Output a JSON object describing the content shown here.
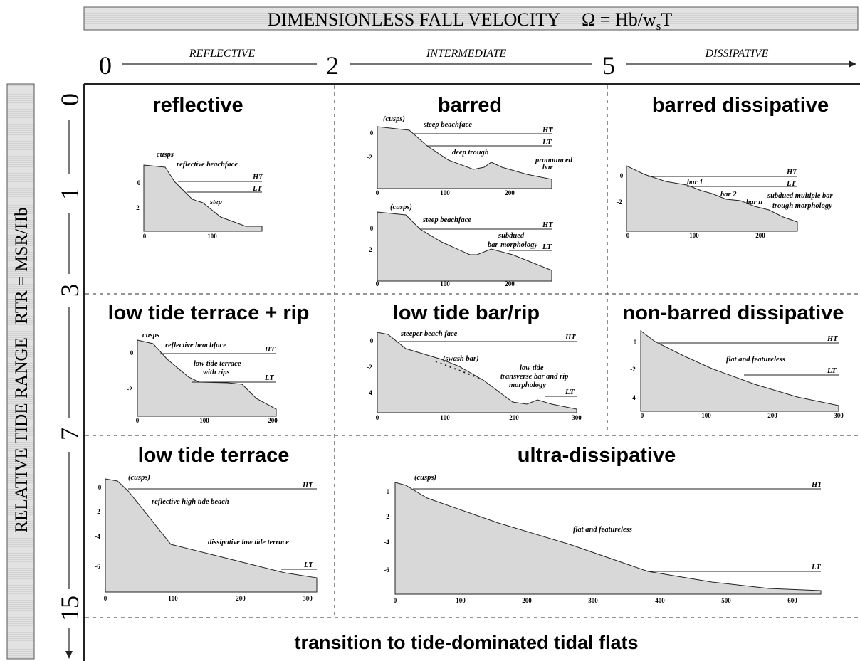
{
  "header": {
    "title": "DIMENSIONLESS FALL VELOCITY",
    "formula_main": "Ω = Hb/w",
    "formula_sub": "s",
    "formula_end": "T"
  },
  "omega_scale": {
    "ticks": [
      "0",
      "2",
      "5"
    ],
    "zones": [
      "REFLECTIVE",
      "INTERMEDIATE",
      "DISSIPATIVE"
    ]
  },
  "rtr_scale": {
    "label": "RELATIVE TIDE RANGE   RTR = MSR/Hb",
    "ticks": [
      "0",
      "1",
      "3",
      "7",
      "15"
    ]
  },
  "panels": [
    {
      "title": "reflective",
      "plots": [
        {
          "labels": [
            "cusps",
            "reflective beachface",
            "HT",
            "LT",
            "step"
          ],
          "yticks": [
            "0",
            "-2"
          ],
          "xticks": [
            "0",
            "100"
          ]
        }
      ]
    },
    {
      "title": "barred",
      "plots": [
        {
          "labels": [
            "(cusps)",
            "steep beachface",
            "HT",
            "LT",
            "deep trough",
            "pronounced",
            "bar"
          ],
          "yticks": [
            "0",
            "-2"
          ],
          "xticks": [
            "0",
            "100",
            "200"
          ]
        },
        {
          "labels": [
            "(cusps)",
            "steep beachface",
            "HT",
            "subdued",
            "bar-morphology",
            "LT"
          ],
          "yticks": [
            "0",
            "-2"
          ],
          "xticks": [
            "0",
            "100",
            "200"
          ]
        }
      ]
    },
    {
      "title": "barred dissipative",
      "plots": [
        {
          "labels": [
            "bar 1",
            "bar 2",
            "bar n",
            "subdued multiple bar-",
            "trough morphology",
            "HT",
            "LT"
          ],
          "yticks": [
            "0",
            "-2"
          ],
          "xticks": [
            "0",
            "100",
            "200"
          ]
        }
      ]
    },
    {
      "title": "low tide terrace + rip",
      "plots": [
        {
          "labels": [
            "cusps",
            "reflective beachface",
            "HT",
            "low tide terrace",
            "with rips",
            "LT"
          ],
          "yticks": [
            "0",
            "-2"
          ],
          "xticks": [
            "0",
            "100",
            "200"
          ]
        }
      ]
    },
    {
      "title": "low tide bar/rip",
      "plots": [
        {
          "labels": [
            "steeper beach face",
            "HT",
            "(swash bar)",
            "low tide",
            "transverse bar and rip",
            "morphology",
            "LT"
          ],
          "yticks": [
            "0",
            "-2",
            "-4"
          ],
          "xticks": [
            "0",
            "100",
            "200",
            "300"
          ]
        }
      ]
    },
    {
      "title": "non-barred dissipative",
      "plots": [
        {
          "labels": [
            "flat and featureless",
            "HT",
            "LT"
          ],
          "yticks": [
            "0",
            "-2",
            "-4"
          ],
          "xticks": [
            "0",
            "100",
            "200",
            "300"
          ]
        }
      ]
    },
    {
      "title": "low tide terrace",
      "plots": [
        {
          "labels": [
            "(cusps)",
            "HT",
            "reflective high tide beach",
            "dissipative low tide terrace",
            "LT"
          ],
          "yticks": [
            "0",
            "-2",
            "-4",
            "-6"
          ],
          "xticks": [
            "0",
            "100",
            "200",
            "300"
          ]
        }
      ]
    },
    {
      "title": "ultra-dissipative",
      "plots": [
        {
          "labels": [
            "(cusps)",
            "HT",
            "flat and featureless",
            "LT"
          ],
          "yticks": [
            "0",
            "-2",
            "-4",
            "-6"
          ],
          "xticks": [
            "0",
            "100",
            "200",
            "300",
            "400",
            "500",
            "600"
          ]
        }
      ]
    }
  ],
  "footer": {
    "text": "transition to tide-dominated tidal flats"
  }
}
